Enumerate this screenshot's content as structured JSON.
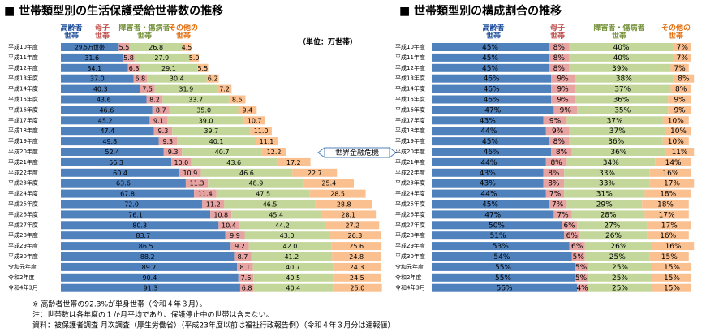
{
  "chart_data": [
    {
      "type": "bar",
      "orientation": "horizontal",
      "stacked": true,
      "title": "■ 世帯類型別の生活保護受給世帯数の推移",
      "unit": "（単位：万世帯）",
      "annotation": "世界金融危機",
      "categories": [
        "平成10年度",
        "平成11年度",
        "平成12年度",
        "平成13年度",
        "平成14年度",
        "平成15年度",
        "平成16年度",
        "平成17年度",
        "平成18年度",
        "平成19年度",
        "平成20年度",
        "平成21年度",
        "平成22年度",
        "平成23年度",
        "平成24年度",
        "平成25年度",
        "平成26年度",
        "平成27年度",
        "平成28年度",
        "平成29年度",
        "平成30年度",
        "令和元年度",
        "令和2年度",
        "令和4年3月"
      ],
      "series": [
        {
          "name": "高齢者\n世帯",
          "color": "#4f81bd",
          "label_color": "#1f4e9c",
          "values": [
            29.5,
            31.6,
            34.1,
            37.0,
            40.3,
            43.6,
            46.6,
            45.2,
            47.4,
            49.8,
            52.4,
            56.3,
            60.4,
            63.6,
            67.8,
            72.0,
            76.1,
            80.3,
            83.7,
            86.5,
            88.2,
            89.7,
            90.4,
            91.3
          ],
          "value_labels": [
            "29.5万世帯",
            "31.6",
            "34.1",
            "37.0",
            "40.3",
            "43.6",
            "46.6",
            "45.2",
            "47.4",
            "49.8",
            "52.4",
            "56.3",
            "60.4",
            "63.6",
            "67.8",
            "72.0",
            "76.1",
            "80.3",
            "83.7",
            "86.5",
            "88.2",
            "89.7",
            "90.4",
            "91.3"
          ]
        },
        {
          "name": "母子\n世帯",
          "color": "#e6a3a1",
          "label_color": "#c0504d",
          "values": [
            5.5,
            5.8,
            6.3,
            6.8,
            7.5,
            8.2,
            8.7,
            9.1,
            9.3,
            9.3,
            9.3,
            10.0,
            10.9,
            11.3,
            11.4,
            11.2,
            10.8,
            10.4,
            9.9,
            9.2,
            8.7,
            8.1,
            7.6,
            6.8
          ],
          "value_labels": [
            "5.5",
            "5.8",
            "6.3",
            "6.8",
            "7.5",
            "8.2",
            "8.7",
            "9.1",
            "9.3",
            "9.3",
            "9.3",
            "10.0",
            "10.9",
            "11.3",
            "11.4",
            "11.2",
            "10.8",
            "10.4",
            "9.9",
            "9.2",
            "8.7",
            "8.1",
            "7.6",
            "6.8"
          ]
        },
        {
          "name": "障害者・傷病者\n世帯",
          "color": "#c4d79b",
          "label_color": "#77933c",
          "values": [
            26.8,
            27.9,
            29.1,
            30.4,
            31.9,
            33.7,
            35.0,
            39.0,
            39.7,
            40.1,
            40.7,
            43.6,
            46.6,
            48.9,
            47.5,
            46.5,
            45.4,
            44.2,
            43.0,
            42.0,
            41.2,
            40.7,
            40.5,
            40.4
          ],
          "value_labels": [
            "26.8",
            "27.9",
            "29.1",
            "30.4",
            "31.9",
            "33.7",
            "35.0",
            "39.0",
            "39.7",
            "40.1",
            "40.7",
            "43.6",
            "46.6",
            "48.9",
            "47.5",
            "46.5",
            "45.4",
            "44.2",
            "43.0",
            "42.0",
            "41.2",
            "40.7",
            "40.5",
            "40.4"
          ]
        },
        {
          "name": "その他の\n世帯",
          "color": "#fac090",
          "label_color": "#e46c0a",
          "values": [
            4.5,
            5.0,
            5.5,
            6.2,
            7.2,
            8.5,
            9.4,
            10.7,
            11.0,
            11.1,
            12.2,
            17.2,
            22.7,
            25.4,
            28.5,
            28.8,
            28.1,
            27.2,
            26.3,
            25.6,
            24.8,
            24.3,
            24.5,
            25.0
          ],
          "value_labels": [
            "4.5",
            "5.0",
            "5.5",
            "6.2",
            "7.2",
            "8.5",
            "9.4",
            "10.7",
            "11.0",
            "11.1",
            "12.2",
            "17.2",
            "22.7",
            "25.4",
            "28.5",
            "28.8",
            "28.1",
            "27.2",
            "26.3",
            "25.6",
            "24.8",
            "24.3",
            "24.5",
            "25.0"
          ]
        }
      ]
    },
    {
      "type": "bar",
      "orientation": "horizontal",
      "stacked": true,
      "title": "■ 世帯類型別の構成割合の推移",
      "categories": [
        "平成10年度",
        "平成11年度",
        "平成12年度",
        "平成13年度",
        "平成14年度",
        "平成15年度",
        "平成16年度",
        "平成17年度",
        "平成18年度",
        "平成19年度",
        "平成20年度",
        "平成21年度",
        "平成22年度",
        "平成23年度",
        "平成24年度",
        "平成25年度",
        "平成26年度",
        "平成27年度",
        "平成28年度",
        "平成29年度",
        "平成30年度",
        "令和元年度",
        "令和2年度",
        "令和4年3月"
      ],
      "series": [
        {
          "name": "高齢者\n世帯",
          "color": "#4f81bd",
          "label_color": "#1f4e9c",
          "values": [
            45,
            45,
            45,
            46,
            46,
            46,
            47,
            43,
            44,
            45,
            46,
            44,
            43,
            43,
            44,
            45,
            47,
            50,
            51,
            53,
            54,
            55,
            55,
            56
          ],
          "value_labels": [
            "45%",
            "45%",
            "45%",
            "46%",
            "46%",
            "46%",
            "47%",
            "43%",
            "44%",
            "45%",
            "46%",
            "44%",
            "43%",
            "43%",
            "44%",
            "45%",
            "47%",
            "50%",
            "51%",
            "53%",
            "54%",
            "55%",
            "55%",
            "56%"
          ]
        },
        {
          "name": "母子\n世帯",
          "color": "#e6a3a1",
          "label_color": "#c0504d",
          "values": [
            8,
            8,
            8,
            9,
            9,
            9,
            9,
            9,
            9,
            8,
            8,
            8,
            8,
            8,
            7,
            7,
            7,
            6,
            6,
            6,
            5,
            5,
            5,
            4
          ],
          "value_labels": [
            "8%",
            "8%",
            "8%",
            "9%",
            "9%",
            "9%",
            "9%",
            "9%",
            "9%",
            "8%",
            "8%",
            "8%",
            "8%",
            "8%",
            "7%",
            "7%",
            "7%",
            "6%",
            "6%",
            "6%",
            "5%",
            "5%",
            "5%",
            "4%"
          ]
        },
        {
          "name": "障害者・傷病者\n世帯",
          "color": "#c4d79b",
          "label_color": "#77933c",
          "values": [
            40,
            40,
            39,
            38,
            37,
            36,
            35,
            37,
            37,
            36,
            36,
            34,
            33,
            33,
            31,
            29,
            28,
            27,
            26,
            26,
            25,
            25,
            25,
            25
          ],
          "value_labels": [
            "40%",
            "40%",
            "39%",
            "38%",
            "37%",
            "36%",
            "35%",
            "37%",
            "37%",
            "36%",
            "36%",
            "34%",
            "33%",
            "33%",
            "31%",
            "29%",
            "28%",
            "27%",
            "26%",
            "26%",
            "25%",
            "25%",
            "25%",
            "25%"
          ]
        },
        {
          "name": "その他の\n世帯",
          "color": "#fac090",
          "label_color": "#e46c0a",
          "values": [
            7,
            7,
            7,
            8,
            8,
            9,
            9,
            10,
            10,
            10,
            11,
            14,
            16,
            17,
            18,
            18,
            17,
            17,
            16,
            16,
            15,
            15,
            15,
            15
          ],
          "value_labels": [
            "7%",
            "7%",
            "7%",
            "8%",
            "8%",
            "9%",
            "9%",
            "10%",
            "10%",
            "10%",
            "11%",
            "14%",
            "16%",
            "17%",
            "18%",
            "18%",
            "17%",
            "17%",
            "16%",
            "16%",
            "15%",
            "15%",
            "15%",
            "15%"
          ]
        }
      ]
    }
  ],
  "notes": [
    "※ 高齢者世帯の92.3%が単身世帯（令和４年３月）。",
    "注：世帯数は各年度の１か月平均であり、保護停止中の世帯は含まない。",
    "資料：被保護者調査 月次調査（厚生労働省）（平成23年度以前は福祉行政報告例）（令和４年３月分は速報値）"
  ]
}
